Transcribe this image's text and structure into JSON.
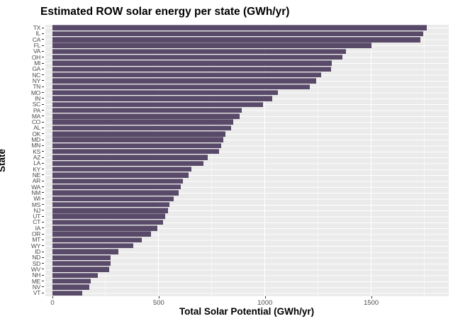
{
  "title": "Estimated ROW solar energy per state (GWh/yr)",
  "chart_data": {
    "type": "bar",
    "orientation": "horizontal",
    "title": "Estimated ROW solar energy per state (GWh/yr)",
    "xlabel": "Total Solar Potential (GWh/yr)",
    "ylabel": "State",
    "xlim": [
      0,
      1865
    ],
    "x_ticks": [
      0,
      500,
      1000,
      1500
    ],
    "x_minor_gridlines": [
      250,
      750,
      1250,
      1750
    ],
    "grid": "white major and minor gridlines on gray panel",
    "legend": "none",
    "bar_color": "#584a68",
    "panel_bg": "#EBEBEB",
    "categories": [
      "TX",
      "IL",
      "CA",
      "FL",
      "VA",
      "OH",
      "MI",
      "GA",
      "NC",
      "NY",
      "TN",
      "MO",
      "IN",
      "SC",
      "PA",
      "MA",
      "CO",
      "AL",
      "OK",
      "MD",
      "MN",
      "KS",
      "AZ",
      "LA",
      "KY",
      "NE",
      "AR",
      "WA",
      "NM",
      "WI",
      "MS",
      "NJ",
      "UT",
      "CT",
      "IA",
      "OR",
      "MT",
      "WY",
      "ID",
      "ND",
      "SD",
      "WV",
      "NH",
      "ME",
      "NV",
      "VT"
    ],
    "values": [
      1760,
      1745,
      1730,
      1500,
      1380,
      1365,
      1315,
      1310,
      1265,
      1240,
      1210,
      1060,
      1035,
      990,
      890,
      880,
      850,
      840,
      815,
      805,
      795,
      785,
      730,
      710,
      655,
      640,
      615,
      605,
      595,
      570,
      550,
      545,
      530,
      520,
      495,
      465,
      420,
      380,
      310,
      275,
      272,
      267,
      215,
      180,
      175,
      140
    ]
  }
}
